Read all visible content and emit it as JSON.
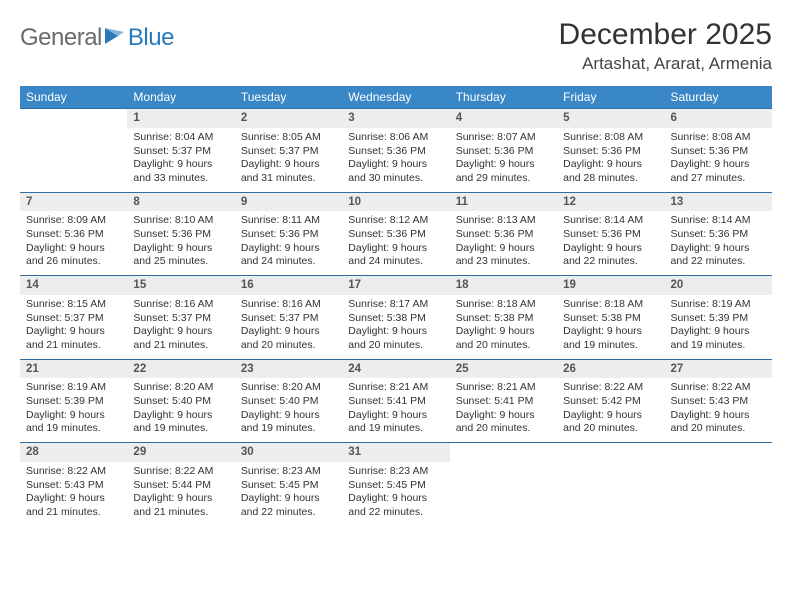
{
  "brand": {
    "word1": "General",
    "word2": "Blue"
  },
  "title": "December 2025",
  "location": "Artashat, Ararat, Armenia",
  "colors": {
    "header_bg": "#3a87c7",
    "header_text": "#ffffff",
    "rule": "#2f6da3",
    "daynum_bg": "#ededed",
    "logo_gray": "#6a6a6a",
    "logo_blue": "#2a7ab9"
  },
  "day_headers": [
    "Sunday",
    "Monday",
    "Tuesday",
    "Wednesday",
    "Thursday",
    "Friday",
    "Saturday"
  ],
  "weeks": [
    [
      null,
      {
        "n": "1",
        "sr": "Sunrise: 8:04 AM",
        "ss": "Sunset: 5:37 PM",
        "d1": "Daylight: 9 hours",
        "d2": "and 33 minutes."
      },
      {
        "n": "2",
        "sr": "Sunrise: 8:05 AM",
        "ss": "Sunset: 5:37 PM",
        "d1": "Daylight: 9 hours",
        "d2": "and 31 minutes."
      },
      {
        "n": "3",
        "sr": "Sunrise: 8:06 AM",
        "ss": "Sunset: 5:36 PM",
        "d1": "Daylight: 9 hours",
        "d2": "and 30 minutes."
      },
      {
        "n": "4",
        "sr": "Sunrise: 8:07 AM",
        "ss": "Sunset: 5:36 PM",
        "d1": "Daylight: 9 hours",
        "d2": "and 29 minutes."
      },
      {
        "n": "5",
        "sr": "Sunrise: 8:08 AM",
        "ss": "Sunset: 5:36 PM",
        "d1": "Daylight: 9 hours",
        "d2": "and 28 minutes."
      },
      {
        "n": "6",
        "sr": "Sunrise: 8:08 AM",
        "ss": "Sunset: 5:36 PM",
        "d1": "Daylight: 9 hours",
        "d2": "and 27 minutes."
      }
    ],
    [
      {
        "n": "7",
        "sr": "Sunrise: 8:09 AM",
        "ss": "Sunset: 5:36 PM",
        "d1": "Daylight: 9 hours",
        "d2": "and 26 minutes."
      },
      {
        "n": "8",
        "sr": "Sunrise: 8:10 AM",
        "ss": "Sunset: 5:36 PM",
        "d1": "Daylight: 9 hours",
        "d2": "and 25 minutes."
      },
      {
        "n": "9",
        "sr": "Sunrise: 8:11 AM",
        "ss": "Sunset: 5:36 PM",
        "d1": "Daylight: 9 hours",
        "d2": "and 24 minutes."
      },
      {
        "n": "10",
        "sr": "Sunrise: 8:12 AM",
        "ss": "Sunset: 5:36 PM",
        "d1": "Daylight: 9 hours",
        "d2": "and 24 minutes."
      },
      {
        "n": "11",
        "sr": "Sunrise: 8:13 AM",
        "ss": "Sunset: 5:36 PM",
        "d1": "Daylight: 9 hours",
        "d2": "and 23 minutes."
      },
      {
        "n": "12",
        "sr": "Sunrise: 8:14 AM",
        "ss": "Sunset: 5:36 PM",
        "d1": "Daylight: 9 hours",
        "d2": "and 22 minutes."
      },
      {
        "n": "13",
        "sr": "Sunrise: 8:14 AM",
        "ss": "Sunset: 5:36 PM",
        "d1": "Daylight: 9 hours",
        "d2": "and 22 minutes."
      }
    ],
    [
      {
        "n": "14",
        "sr": "Sunrise: 8:15 AM",
        "ss": "Sunset: 5:37 PM",
        "d1": "Daylight: 9 hours",
        "d2": "and 21 minutes."
      },
      {
        "n": "15",
        "sr": "Sunrise: 8:16 AM",
        "ss": "Sunset: 5:37 PM",
        "d1": "Daylight: 9 hours",
        "d2": "and 21 minutes."
      },
      {
        "n": "16",
        "sr": "Sunrise: 8:16 AM",
        "ss": "Sunset: 5:37 PM",
        "d1": "Daylight: 9 hours",
        "d2": "and 20 minutes."
      },
      {
        "n": "17",
        "sr": "Sunrise: 8:17 AM",
        "ss": "Sunset: 5:38 PM",
        "d1": "Daylight: 9 hours",
        "d2": "and 20 minutes."
      },
      {
        "n": "18",
        "sr": "Sunrise: 8:18 AM",
        "ss": "Sunset: 5:38 PM",
        "d1": "Daylight: 9 hours",
        "d2": "and 20 minutes."
      },
      {
        "n": "19",
        "sr": "Sunrise: 8:18 AM",
        "ss": "Sunset: 5:38 PM",
        "d1": "Daylight: 9 hours",
        "d2": "and 19 minutes."
      },
      {
        "n": "20",
        "sr": "Sunrise: 8:19 AM",
        "ss": "Sunset: 5:39 PM",
        "d1": "Daylight: 9 hours",
        "d2": "and 19 minutes."
      }
    ],
    [
      {
        "n": "21",
        "sr": "Sunrise: 8:19 AM",
        "ss": "Sunset: 5:39 PM",
        "d1": "Daylight: 9 hours",
        "d2": "and 19 minutes."
      },
      {
        "n": "22",
        "sr": "Sunrise: 8:20 AM",
        "ss": "Sunset: 5:40 PM",
        "d1": "Daylight: 9 hours",
        "d2": "and 19 minutes."
      },
      {
        "n": "23",
        "sr": "Sunrise: 8:20 AM",
        "ss": "Sunset: 5:40 PM",
        "d1": "Daylight: 9 hours",
        "d2": "and 19 minutes."
      },
      {
        "n": "24",
        "sr": "Sunrise: 8:21 AM",
        "ss": "Sunset: 5:41 PM",
        "d1": "Daylight: 9 hours",
        "d2": "and 19 minutes."
      },
      {
        "n": "25",
        "sr": "Sunrise: 8:21 AM",
        "ss": "Sunset: 5:41 PM",
        "d1": "Daylight: 9 hours",
        "d2": "and 20 minutes."
      },
      {
        "n": "26",
        "sr": "Sunrise: 8:22 AM",
        "ss": "Sunset: 5:42 PM",
        "d1": "Daylight: 9 hours",
        "d2": "and 20 minutes."
      },
      {
        "n": "27",
        "sr": "Sunrise: 8:22 AM",
        "ss": "Sunset: 5:43 PM",
        "d1": "Daylight: 9 hours",
        "d2": "and 20 minutes."
      }
    ],
    [
      {
        "n": "28",
        "sr": "Sunrise: 8:22 AM",
        "ss": "Sunset: 5:43 PM",
        "d1": "Daylight: 9 hours",
        "d2": "and 21 minutes."
      },
      {
        "n": "29",
        "sr": "Sunrise: 8:22 AM",
        "ss": "Sunset: 5:44 PM",
        "d1": "Daylight: 9 hours",
        "d2": "and 21 minutes."
      },
      {
        "n": "30",
        "sr": "Sunrise: 8:23 AM",
        "ss": "Sunset: 5:45 PM",
        "d1": "Daylight: 9 hours",
        "d2": "and 22 minutes."
      },
      {
        "n": "31",
        "sr": "Sunrise: 8:23 AM",
        "ss": "Sunset: 5:45 PM",
        "d1": "Daylight: 9 hours",
        "d2": "and 22 minutes."
      },
      null,
      null,
      null
    ]
  ]
}
